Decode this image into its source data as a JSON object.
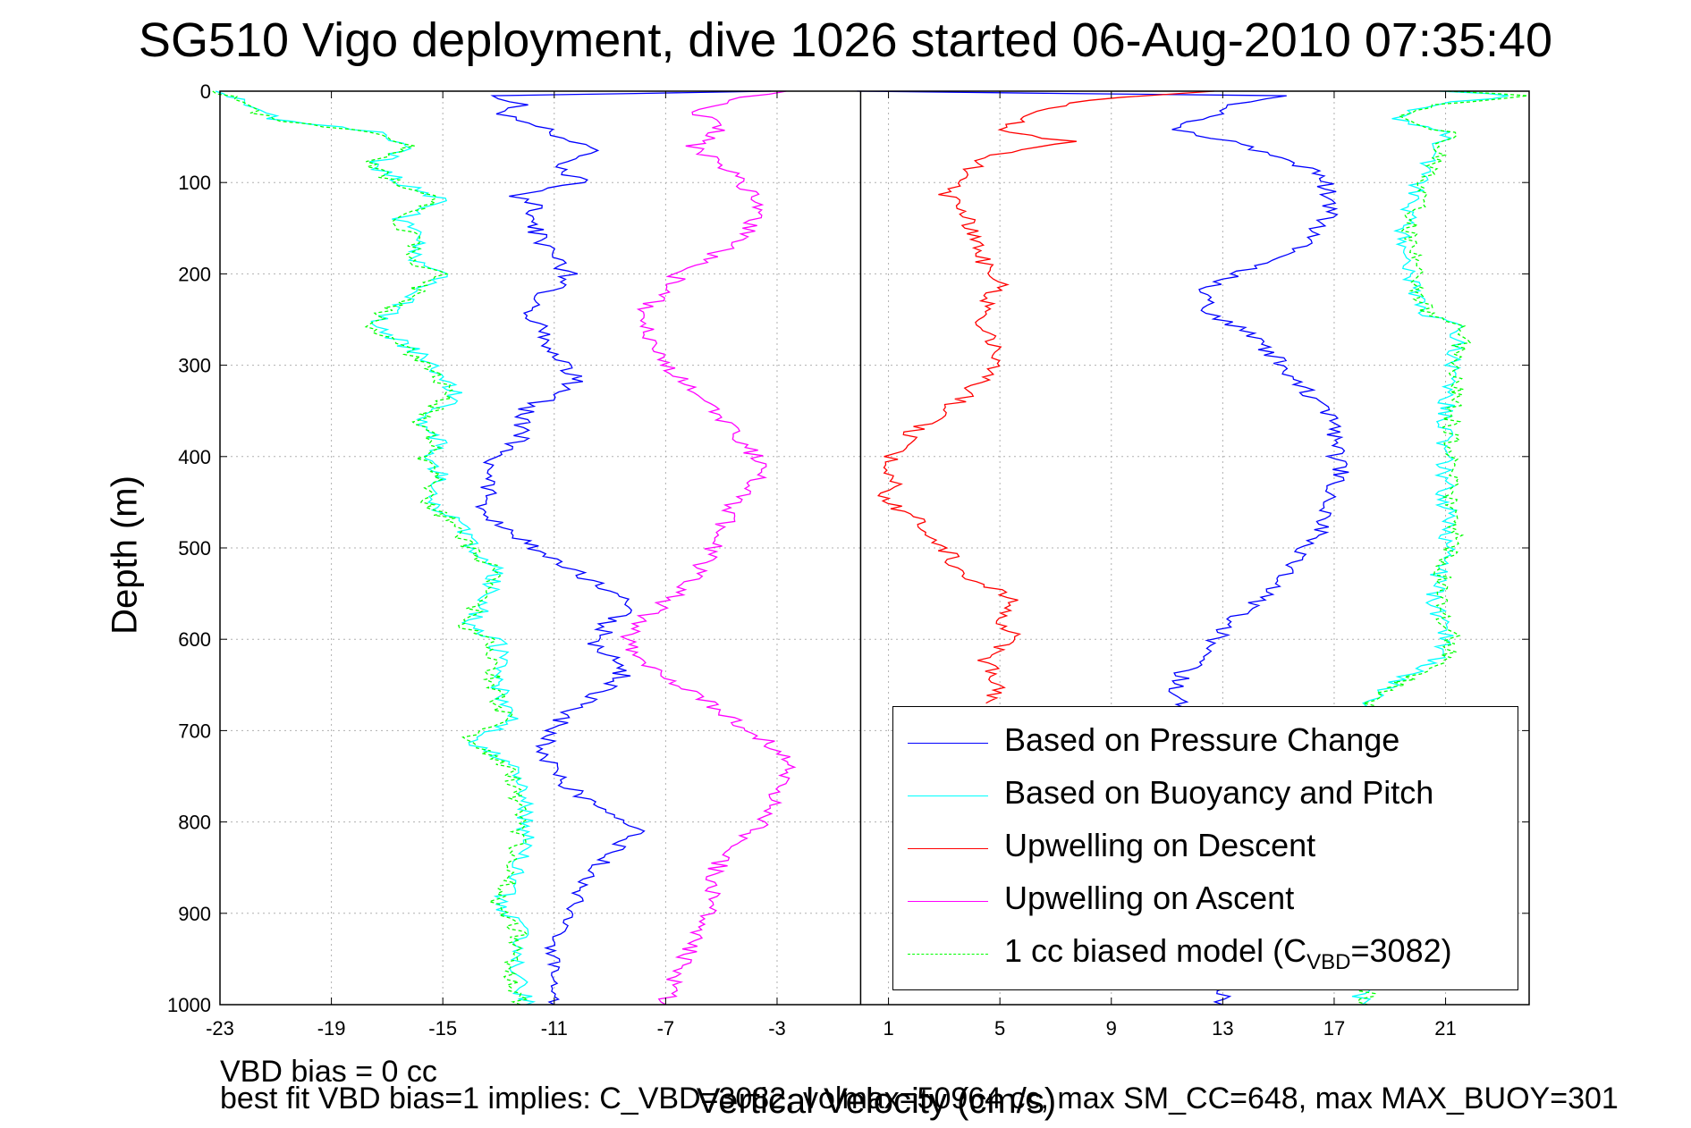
{
  "title": "SG510 Vigo deployment, dive 1026 started 06-Aug-2010 07:35:40",
  "notes": {
    "line1": "VBD bias = 0 cc",
    "line2": "best fit VBD bias=1 implies: C_VBD=3082, volmax=50964 cc, max SM_CC=648, max MAX_BUOY=301"
  },
  "chart_data": {
    "type": "line",
    "title": "SG510 Vigo deployment, dive 1026 started 06-Aug-2010 07:35:40",
    "xlabel": "Vertical Velocity (cm/s)",
    "ylabel": "Depth (m)",
    "xlim": [
      -23,
      24
    ],
    "ylim": [
      0,
      1000
    ],
    "y_reversed": true,
    "xticks": [
      "-23",
      "-19",
      "-15",
      "-11",
      "-7",
      "-3",
      "1",
      "5",
      "9",
      "13",
      "17",
      "21"
    ],
    "yticks": [
      "0",
      "100",
      "200",
      "300",
      "400",
      "500",
      "600",
      "700",
      "800",
      "900",
      "1000"
    ],
    "grid": true,
    "vertical_reference_line_x": 0,
    "legend_position": "bottom-right",
    "legend": {
      "items": [
        {
          "label": "Based on Pressure Change",
          "color": "#0000ff",
          "style": "solid"
        },
        {
          "label": "Based on Buoyancy and Pitch",
          "color": "#00ffff",
          "style": "solid"
        },
        {
          "label": "Upwelling on Descent",
          "color": "#ff0000",
          "style": "solid"
        },
        {
          "label": "Upwelling on Ascent",
          "color": "#ff00ff",
          "style": "solid"
        },
        {
          "label_pre": "1 cc biased model (C",
          "label_sub": "VBD",
          "label_post": "=3082)",
          "color": "#00ff00",
          "style": "dashed"
        }
      ]
    },
    "series": [
      {
        "name": "Based on Pressure Change",
        "color": "#0000ff",
        "points": [
          [
            -3,
            0
          ],
          [
            -13.5,
            5
          ],
          [
            -12,
            15
          ],
          [
            -13,
            25
          ],
          [
            -12,
            35
          ],
          [
            -11,
            45
          ],
          [
            -10.5,
            55
          ],
          [
            -9.5,
            65
          ],
          [
            -11,
            80
          ],
          [
            -10,
            100
          ],
          [
            -12.5,
            115
          ],
          [
            -11.5,
            125
          ],
          [
            -12,
            140
          ],
          [
            -11.5,
            160
          ],
          [
            -11,
            185
          ],
          [
            -10.5,
            200
          ],
          [
            -11,
            215
          ],
          [
            -12,
            240
          ],
          [
            -11.5,
            260
          ],
          [
            -11,
            285
          ],
          [
            -10.2,
            315
          ],
          [
            -11,
            335
          ],
          [
            -12,
            345
          ],
          [
            -12.2,
            380
          ],
          [
            -13,
            395
          ],
          [
            -13.6,
            415
          ],
          [
            -13.2,
            440
          ],
          [
            -13.8,
            455
          ],
          [
            -13,
            475
          ],
          [
            -12,
            495
          ],
          [
            -11,
            515
          ],
          [
            -10,
            530
          ],
          [
            -9,
            550
          ],
          [
            -8,
            565
          ],
          [
            -9,
            580
          ],
          [
            -9.5,
            605
          ],
          [
            -9,
            620
          ],
          [
            -8.5,
            640
          ],
          [
            -9.5,
            660
          ],
          [
            -10.5,
            680
          ],
          [
            -11,
            700
          ],
          [
            -11.5,
            720
          ],
          [
            -11,
            745
          ],
          [
            -10,
            775
          ],
          [
            -9,
            795
          ],
          [
            -8,
            810
          ],
          [
            -8.8,
            830
          ],
          [
            -9.5,
            850
          ],
          [
            -10,
            875
          ],
          [
            -10.5,
            895
          ],
          [
            -11,
            935
          ],
          [
            -11.2,
            965
          ],
          [
            -11,
            1000
          ]
        ]
      },
      {
        "name": "Based on Pressure Change (second half)",
        "color": "#0000ff",
        "points": [
          [
            0.2,
            0
          ],
          [
            15.2,
            5
          ],
          [
            13.5,
            15
          ],
          [
            12.5,
            28
          ],
          [
            11,
            42
          ],
          [
            13.5,
            55
          ],
          [
            14.5,
            70
          ],
          [
            16.5,
            90
          ],
          [
            16.8,
            110
          ],
          [
            16.8,
            135
          ],
          [
            16.2,
            160
          ],
          [
            15,
            185
          ],
          [
            13.5,
            200
          ],
          [
            12.2,
            220
          ],
          [
            12.5,
            240
          ],
          [
            13.8,
            265
          ],
          [
            15,
            295
          ],
          [
            16,
            330
          ],
          [
            16.8,
            355
          ],
          [
            17,
            385
          ],
          [
            17.2,
            420
          ],
          [
            16.8,
            450
          ],
          [
            16.5,
            480
          ],
          [
            15.8,
            510
          ],
          [
            14.8,
            545
          ],
          [
            13.5,
            575
          ],
          [
            12.5,
            610
          ],
          [
            11.5,
            640
          ],
          [
            11.3,
            660
          ],
          [
            11.6,
            680
          ],
          [
            12,
            700
          ],
          [
            12.5,
            720
          ],
          [
            12.8,
            800
          ],
          [
            13,
            900
          ],
          [
            13,
            1000
          ]
        ]
      },
      {
        "name": "Based on Buoyancy and Pitch",
        "color": "#00ffff",
        "points": [
          [
            -23,
            0
          ],
          [
            -22,
            15
          ],
          [
            -21,
            30
          ],
          [
            -17.5,
            45
          ],
          [
            -16,
            60
          ],
          [
            -17.5,
            80
          ],
          [
            -16.5,
            100
          ],
          [
            -15,
            120
          ],
          [
            -16.5,
            140
          ],
          [
            -15.8,
            160
          ],
          [
            -16,
            185
          ],
          [
            -15,
            200
          ],
          [
            -16,
            225
          ],
          [
            -17.5,
            255
          ],
          [
            -16,
            285
          ],
          [
            -15,
            310
          ],
          [
            -14.5,
            330
          ],
          [
            -15,
            345
          ],
          [
            -15.8,
            365
          ],
          [
            -15,
            385
          ],
          [
            -15.5,
            405
          ],
          [
            -15,
            425
          ],
          [
            -15.6,
            450
          ],
          [
            -14.5,
            470
          ],
          [
            -14,
            495
          ],
          [
            -13,
            525
          ],
          [
            -13.5,
            560
          ],
          [
            -14,
            585
          ],
          [
            -13,
            605
          ],
          [
            -13,
            650
          ],
          [
            -12.5,
            690
          ],
          [
            -14,
            710
          ],
          [
            -12.5,
            740
          ],
          [
            -12,
            780
          ],
          [
            -12,
            820
          ],
          [
            -12.5,
            870
          ],
          [
            -13,
            890
          ],
          [
            -12,
            920
          ],
          [
            -12.5,
            960
          ],
          [
            -12,
            1000
          ]
        ]
      },
      {
        "name": "Based on Buoyancy and Pitch (second half)",
        "color": "#00ffff",
        "points": [
          [
            21,
            0
          ],
          [
            23.5,
            5
          ],
          [
            20.5,
            15
          ],
          [
            19,
            30
          ],
          [
            21,
            45
          ],
          [
            20.5,
            70
          ],
          [
            20,
            100
          ],
          [
            19.5,
            150
          ],
          [
            19.8,
            200
          ],
          [
            20,
            240
          ],
          [
            21.5,
            260
          ],
          [
            21.2,
            300
          ],
          [
            21,
            350
          ],
          [
            21,
            400
          ],
          [
            21,
            450
          ],
          [
            21.2,
            480
          ],
          [
            20.8,
            520
          ],
          [
            20.5,
            560
          ],
          [
            21,
            590
          ],
          [
            20.8,
            620
          ],
          [
            19,
            650
          ],
          [
            18,
            670
          ],
          [
            17.5,
            700
          ],
          [
            17.5,
            800
          ],
          [
            17.5,
            900
          ],
          [
            18,
            1000
          ]
        ]
      },
      {
        "name": "Upwelling on Descent",
        "color": "#ff0000",
        "points": [
          [
            13,
            0
          ],
          [
            8,
            10
          ],
          [
            6,
            25
          ],
          [
            5,
            45
          ],
          [
            7.5,
            55
          ],
          [
            4.5,
            70
          ],
          [
            3,
            110
          ],
          [
            4,
            150
          ],
          [
            4.5,
            190
          ],
          [
            5,
            215
          ],
          [
            4,
            250
          ],
          [
            5,
            280
          ],
          [
            4.5,
            310
          ],
          [
            3.5,
            340
          ],
          [
            2,
            370
          ],
          [
            1,
            400
          ],
          [
            1.2,
            430
          ],
          [
            0.5,
            440
          ],
          [
            1.5,
            460
          ],
          [
            2.5,
            480
          ],
          [
            3,
            500
          ],
          [
            3.5,
            525
          ],
          [
            4.5,
            540
          ],
          [
            5.5,
            560
          ],
          [
            5,
            580
          ],
          [
            5.5,
            600
          ],
          [
            4.5,
            620
          ],
          [
            5,
            650
          ],
          [
            4.5,
            670
          ]
        ]
      },
      {
        "name": "Upwelling on Ascent",
        "color": "#ff00ff",
        "points": [
          [
            -3,
            0
          ],
          [
            -4.5,
            10
          ],
          [
            -6,
            20
          ],
          [
            -5,
            40
          ],
          [
            -6,
            60
          ],
          [
            -4.5,
            90
          ],
          [
            -4,
            110
          ],
          [
            -3.5,
            130
          ],
          [
            -4,
            150
          ],
          [
            -5,
            175
          ],
          [
            -6.5,
            200
          ],
          [
            -7,
            220
          ],
          [
            -8,
            245
          ],
          [
            -7.5,
            270
          ],
          [
            -7,
            300
          ],
          [
            -6,
            330
          ],
          [
            -5,
            360
          ],
          [
            -4,
            390
          ],
          [
            -3.5,
            420
          ],
          [
            -4.5,
            450
          ],
          [
            -5,
            480
          ],
          [
            -5.5,
            510
          ],
          [
            -6.2,
            540
          ],
          [
            -7,
            560
          ],
          [
            -8,
            580
          ],
          [
            -8.5,
            600
          ],
          [
            -8,
            620
          ],
          [
            -7,
            640
          ],
          [
            -6,
            660
          ],
          [
            -5,
            680
          ],
          [
            -4,
            700
          ],
          [
            -3,
            720
          ],
          [
            -2.7,
            740
          ],
          [
            -3,
            770
          ],
          [
            -3.5,
            800
          ],
          [
            -5,
            830
          ],
          [
            -5.2,
            860
          ],
          [
            -5.5,
            900
          ],
          [
            -6,
            930
          ],
          [
            -6.5,
            960
          ],
          [
            -7,
            1000
          ]
        ]
      },
      {
        "name": "1 cc biased model (C_VBD=3082)",
        "color": "#00ff00",
        "dashed": true,
        "points": [
          [
            -23,
            0
          ],
          [
            -22.2,
            15
          ],
          [
            -21.2,
            30
          ],
          [
            -17.7,
            45
          ],
          [
            -16.2,
            60
          ],
          [
            -17.7,
            80
          ],
          [
            -16.7,
            100
          ],
          [
            -15.2,
            120
          ],
          [
            -16.7,
            140
          ],
          [
            -16,
            160
          ],
          [
            -16.2,
            185
          ],
          [
            -15.2,
            200
          ],
          [
            -16.2,
            225
          ],
          [
            -17.7,
            255
          ],
          [
            -16.2,
            285
          ],
          [
            -15.2,
            310
          ],
          [
            -14.7,
            330
          ],
          [
            -15.2,
            345
          ],
          [
            -16,
            365
          ],
          [
            -15.2,
            385
          ],
          [
            -15.7,
            405
          ],
          [
            -15.2,
            425
          ],
          [
            -15.8,
            450
          ],
          [
            -14.7,
            470
          ],
          [
            -14.2,
            495
          ],
          [
            -13.2,
            525
          ],
          [
            -13.7,
            560
          ],
          [
            -14.2,
            585
          ],
          [
            -13.2,
            605
          ],
          [
            -13.2,
            650
          ],
          [
            -12.7,
            690
          ],
          [
            -14.2,
            710
          ],
          [
            -12.7,
            740
          ],
          [
            -12.2,
            780
          ],
          [
            -12.2,
            820
          ],
          [
            -12.7,
            870
          ],
          [
            -13.2,
            890
          ],
          [
            -12.2,
            920
          ],
          [
            -12.7,
            960
          ],
          [
            -12.2,
            1000
          ]
        ]
      },
      {
        "name": "1 cc biased model (second half)",
        "color": "#00ff00",
        "dashed": true,
        "points": [
          [
            21.2,
            0
          ],
          [
            23.7,
            5
          ],
          [
            20.7,
            15
          ],
          [
            19.2,
            30
          ],
          [
            21.2,
            45
          ],
          [
            20.7,
            70
          ],
          [
            20.2,
            100
          ],
          [
            19.7,
            150
          ],
          [
            20,
            200
          ],
          [
            20.2,
            240
          ],
          [
            21.7,
            260
          ],
          [
            21.4,
            300
          ],
          [
            21.2,
            350
          ],
          [
            21.2,
            400
          ],
          [
            21.2,
            450
          ],
          [
            21.4,
            480
          ],
          [
            21,
            520
          ],
          [
            20.7,
            560
          ],
          [
            21.2,
            590
          ],
          [
            21,
            620
          ],
          [
            19.2,
            650
          ],
          [
            18.2,
            670
          ],
          [
            17.7,
            700
          ],
          [
            17.7,
            800
          ],
          [
            17.7,
            900
          ],
          [
            18.2,
            1000
          ]
        ]
      }
    ]
  }
}
